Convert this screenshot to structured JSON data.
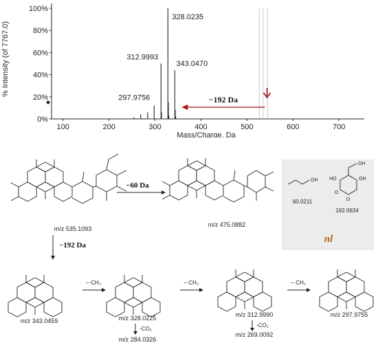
{
  "colors": {
    "arrow_red": "#a31515",
    "panel_gray": "#ececec",
    "nl_orange": "#b5651d"
  },
  "chart_data": {
    "type": "bar",
    "xlabel": "Mass/Charge, Da",
    "ylabel": "% Intensity (of 7767.0)",
    "xlim": [
      75,
      755
    ],
    "ylim": [
      0,
      100
    ],
    "x_ticks": [
      100,
      200,
      300,
      400,
      500,
      600,
      700
    ],
    "y_ticks": [
      {
        "value": 0,
        "label": "0%"
      },
      {
        "value": 20,
        "label": "20%"
      },
      {
        "value": 40,
        "label": "40%"
      },
      {
        "value": 60,
        "label": "60%"
      },
      {
        "value": 80,
        "label": "80%"
      },
      {
        "value": 100,
        "label": "100%"
      }
    ],
    "peaks": [
      {
        "mz": 254,
        "intensity": 1.5
      },
      {
        "mz": 269.0,
        "intensity": 4
      },
      {
        "mz": 284.0,
        "intensity": 6
      },
      {
        "mz": 297.9756,
        "intensity": 12,
        "label": "297.9756"
      },
      {
        "mz": 312.9993,
        "intensity": 50,
        "label": "312.9993"
      },
      {
        "mz": 314.0,
        "intensity": 6
      },
      {
        "mz": 328.0235,
        "intensity": 100,
        "label": "328.0235"
      },
      {
        "mz": 329.0,
        "intensity": 15
      },
      {
        "mz": 330.0,
        "intensity": 3
      },
      {
        "mz": 343.047,
        "intensity": 44,
        "label": "343.0470"
      },
      {
        "mz": 344.0,
        "intensity": 8
      },
      {
        "mz": 345.0,
        "intensity": 2
      },
      {
        "mz": 527,
        "intensity": 100
      },
      {
        "mz": 535,
        "intensity": 100
      },
      {
        "mz": 545,
        "intensity": 100
      }
    ],
    "annotations": [
      {
        "text": "−192 Da",
        "from_mz": 545,
        "to_mz": 343
      }
    ]
  },
  "scheme": {
    "parent": {
      "mz": "m/z 535.1093"
    },
    "loss60": {
      "label": "−60 Da",
      "product_mz": "m/z 475.0882"
    },
    "loss192": {
      "label": "−192 Da"
    },
    "nl_panel": {
      "title": "nl",
      "items": [
        {
          "mass": "60.0211",
          "atom": "OH"
        },
        {
          "mass": "192.0634",
          "atoms": [
            "HO",
            "OH",
            "OH",
            "O",
            "O"
          ]
        }
      ]
    },
    "bottom_row": [
      {
        "mz": "m/z 343.0459"
      },
      {
        "mz": "m/z 328.0225",
        "co2": "m/z 284.0326"
      },
      {
        "mz": "m/z 312.9990",
        "co2": "m/z 269.0092"
      },
      {
        "mz": "m/z 297.9755"
      }
    ],
    "methyl_loss": "−·CH₃",
    "co2_loss": "-CO₂"
  }
}
